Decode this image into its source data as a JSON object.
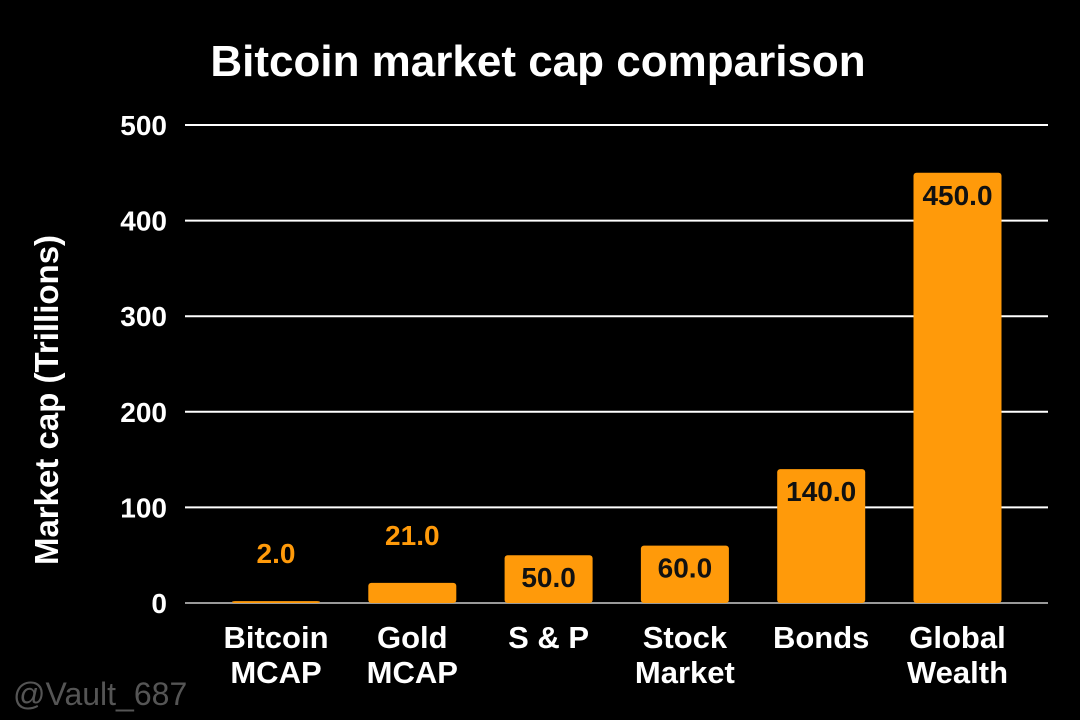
{
  "chart_data": {
    "type": "bar",
    "title": "Bitcoin market cap comparison",
    "xlabel": "",
    "ylabel": "Market cap (Trillions)",
    "ylim": [
      0,
      500
    ],
    "yticks": [
      0,
      100,
      200,
      300,
      400,
      500
    ],
    "grid": true,
    "categories": [
      [
        "Bitcoin",
        "MCAP"
      ],
      [
        "Gold",
        "MCAP"
      ],
      [
        "S & P"
      ],
      [
        "Stock",
        "Market"
      ],
      [
        "Bonds"
      ],
      [
        "Global",
        "Wealth"
      ]
    ],
    "values": [
      2.0,
      21.0,
      50.0,
      60.0,
      140.0,
      450.0
    ],
    "data_labels": [
      "2.0",
      "21.0",
      "50.0",
      "60.0",
      "140.0",
      "450.0"
    ],
    "colors": {
      "bar": "#FF9A0A",
      "background": "#000000",
      "text": "#FFFFFF",
      "grid": "#FFFFFF",
      "label_inside": "#111111"
    }
  },
  "watermark": "@Vault_687"
}
